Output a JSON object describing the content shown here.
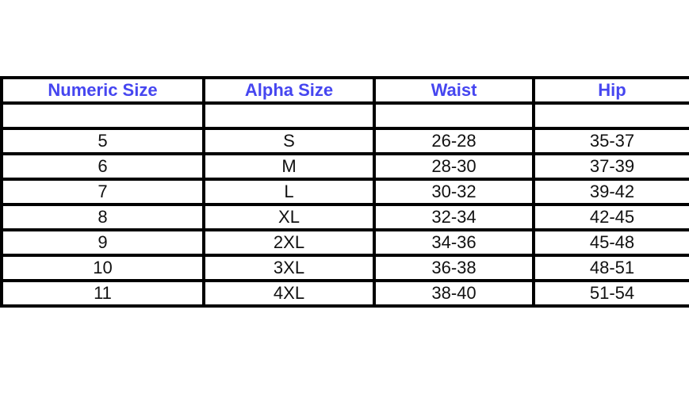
{
  "headers": [
    "Numeric Size",
    "Alpha Size",
    "Waist",
    "Hip"
  ],
  "header_color": "#4646f0",
  "rows": [
    [
      "",
      "",
      "",
      ""
    ],
    [
      "5",
      "S",
      "26-28",
      "35-37"
    ],
    [
      "6",
      "M",
      "28-30",
      "37-39"
    ],
    [
      "7",
      "L",
      "30-32",
      "39-42"
    ],
    [
      "8",
      "XL",
      "32-34",
      "42-45"
    ],
    [
      "9",
      "2XL",
      "34-36",
      "45-48"
    ],
    [
      "10",
      "3XL",
      "36-38",
      "48-51"
    ],
    [
      "11",
      "4XL",
      "38-40",
      "51-54"
    ]
  ]
}
